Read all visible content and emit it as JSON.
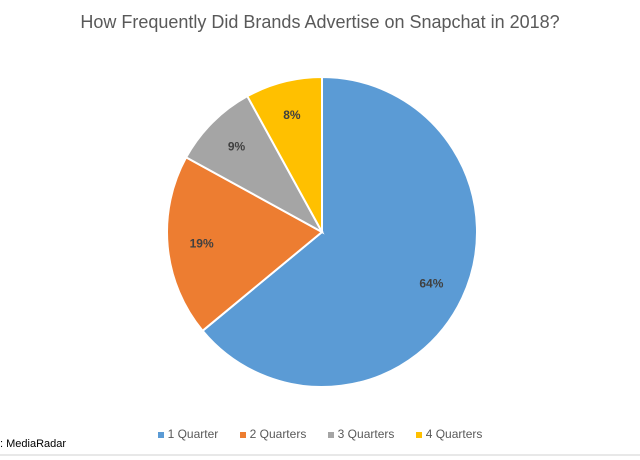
{
  "chart_data": {
    "type": "pie",
    "title": "How Frequently Did Brands Advertise on Snapchat in 2018?",
    "categories": [
      "1 Quarter",
      "2 Quarters",
      "3 Quarters",
      "4 Quarters"
    ],
    "values": [
      64,
      19,
      9,
      8
    ],
    "labels": [
      "64%",
      "19%",
      "9%",
      "8%"
    ],
    "colors": [
      "#5b9bd5",
      "#ed7d31",
      "#a5a5a5",
      "#ffc000"
    ],
    "legend": "bottom",
    "start": "top, clockwise"
  },
  "source": ": MediaRadar"
}
